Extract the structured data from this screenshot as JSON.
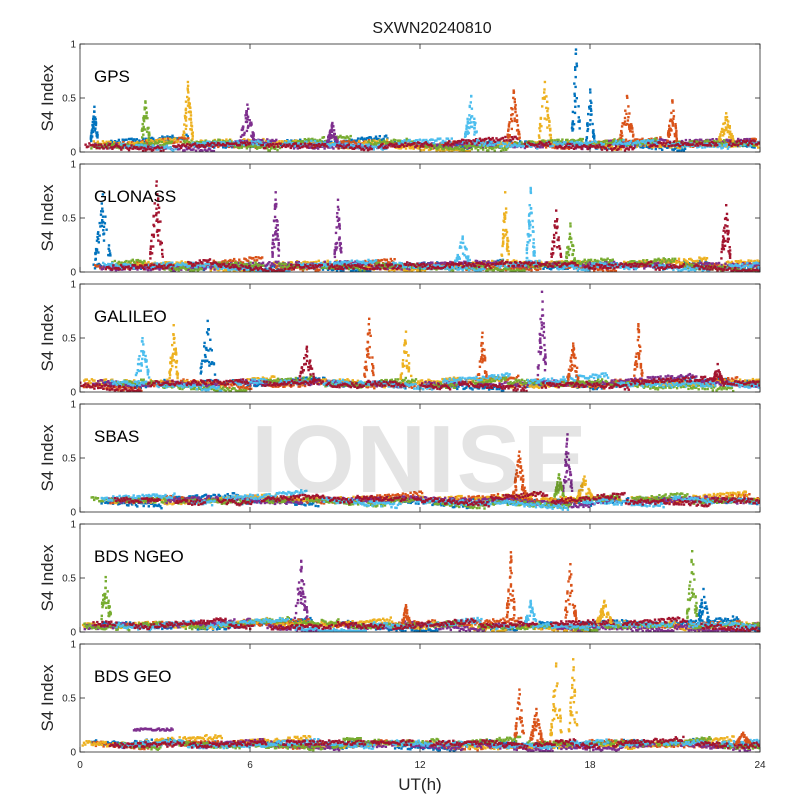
{
  "chart_data": {
    "type": "scatter",
    "title": "SXWN20240810",
    "xlabel": "UT(h)",
    "ylabel": "S4 Index",
    "xlim": [
      0,
      24
    ],
    "ylim": [
      0,
      1
    ],
    "xticks": [
      0,
      6,
      12,
      18,
      24
    ],
    "yticks": [
      0,
      0.5,
      1
    ],
    "ytick_labels": [
      "0",
      "0.5",
      "1"
    ],
    "grid": false,
    "watermark": "IONISE",
    "series_colors": [
      "#0072BD",
      "#D95319",
      "#EDB120",
      "#7E2F8E",
      "#77AC30",
      "#4DBEEE",
      "#A2142F"
    ],
    "panels": [
      {
        "name": "GPS",
        "baseline": 0.07,
        "spikes": [
          {
            "x": 0.5,
            "peak": 0.42,
            "color": 0
          },
          {
            "x": 2.3,
            "peak": 0.47,
            "color": 4
          },
          {
            "x": 3.8,
            "peak": 0.65,
            "color": 2
          },
          {
            "x": 5.9,
            "peak": 0.44,
            "color": 3
          },
          {
            "x": 8.9,
            "peak": 0.27,
            "color": 3
          },
          {
            "x": 13.8,
            "peak": 0.52,
            "color": 5
          },
          {
            "x": 15.3,
            "peak": 0.57,
            "color": 1
          },
          {
            "x": 16.4,
            "peak": 0.65,
            "color": 2
          },
          {
            "x": 17.5,
            "peak": 0.95,
            "color": 0
          },
          {
            "x": 18.0,
            "peak": 0.58,
            "color": 0
          },
          {
            "x": 19.3,
            "peak": 0.52,
            "color": 1
          },
          {
            "x": 20.9,
            "peak": 0.48,
            "color": 1
          },
          {
            "x": 22.8,
            "peak": 0.36,
            "color": 2
          }
        ]
      },
      {
        "name": "GLONASS",
        "baseline": 0.06,
        "spikes": [
          {
            "x": 0.8,
            "peak": 0.72,
            "color": 0
          },
          {
            "x": 2.7,
            "peak": 0.84,
            "color": 6
          },
          {
            "x": 6.9,
            "peak": 0.74,
            "color": 3
          },
          {
            "x": 9.1,
            "peak": 0.67,
            "color": 3
          },
          {
            "x": 13.5,
            "peak": 0.33,
            "color": 5
          },
          {
            "x": 15.0,
            "peak": 0.74,
            "color": 2
          },
          {
            "x": 15.9,
            "peak": 0.78,
            "color": 5
          },
          {
            "x": 16.8,
            "peak": 0.57,
            "color": 6
          },
          {
            "x": 17.3,
            "peak": 0.45,
            "color": 4
          },
          {
            "x": 22.8,
            "peak": 0.62,
            "color": 6
          }
        ]
      },
      {
        "name": "GALILEO",
        "baseline": 0.08,
        "spikes": [
          {
            "x": 2.2,
            "peak": 0.5,
            "color": 5
          },
          {
            "x": 3.3,
            "peak": 0.62,
            "color": 2
          },
          {
            "x": 4.5,
            "peak": 0.66,
            "color": 0
          },
          {
            "x": 8.0,
            "peak": 0.42,
            "color": 6
          },
          {
            "x": 10.2,
            "peak": 0.68,
            "color": 1
          },
          {
            "x": 11.5,
            "peak": 0.56,
            "color": 2
          },
          {
            "x": 14.2,
            "peak": 0.55,
            "color": 1
          },
          {
            "x": 16.3,
            "peak": 0.93,
            "color": 3
          },
          {
            "x": 17.4,
            "peak": 0.45,
            "color": 1
          },
          {
            "x": 19.7,
            "peak": 0.63,
            "color": 1
          },
          {
            "x": 22.5,
            "peak": 0.26,
            "color": 6
          }
        ]
      },
      {
        "name": "SBAS",
        "baseline": 0.11,
        "spikes": [
          {
            "x": 15.5,
            "peak": 0.56,
            "color": 1
          },
          {
            "x": 17.2,
            "peak": 0.72,
            "color": 3
          },
          {
            "x": 16.9,
            "peak": 0.35,
            "color": 4
          },
          {
            "x": 17.8,
            "peak": 0.33,
            "color": 2
          }
        ]
      },
      {
        "name": "BDS NGEO",
        "baseline": 0.06,
        "spikes": [
          {
            "x": 0.9,
            "peak": 0.51,
            "color": 4
          },
          {
            "x": 7.8,
            "peak": 0.66,
            "color": 3
          },
          {
            "x": 11.5,
            "peak": 0.25,
            "color": 1
          },
          {
            "x": 15.2,
            "peak": 0.74,
            "color": 1
          },
          {
            "x": 15.9,
            "peak": 0.29,
            "color": 5
          },
          {
            "x": 17.3,
            "peak": 0.63,
            "color": 1
          },
          {
            "x": 18.5,
            "peak": 0.29,
            "color": 2
          },
          {
            "x": 21.6,
            "peak": 0.75,
            "color": 4
          },
          {
            "x": 22.0,
            "peak": 0.4,
            "color": 0
          }
        ]
      },
      {
        "name": "BDS GEO",
        "baseline": 0.07,
        "spikes": [
          {
            "x": 15.5,
            "peak": 0.58,
            "color": 1
          },
          {
            "x": 16.1,
            "peak": 0.4,
            "color": 1
          },
          {
            "x": 16.8,
            "peak": 0.82,
            "color": 2
          },
          {
            "x": 17.4,
            "peak": 0.86,
            "color": 2
          },
          {
            "x": 23.4,
            "peak": 0.18,
            "color": 1
          }
        ],
        "plateaus": [
          {
            "x0": 1.9,
            "x1": 3.3,
            "y": 0.21,
            "color": 3
          },
          {
            "x0": 9.3,
            "x1": 9.9,
            "y": 0.12,
            "color": 4
          }
        ]
      }
    ]
  }
}
